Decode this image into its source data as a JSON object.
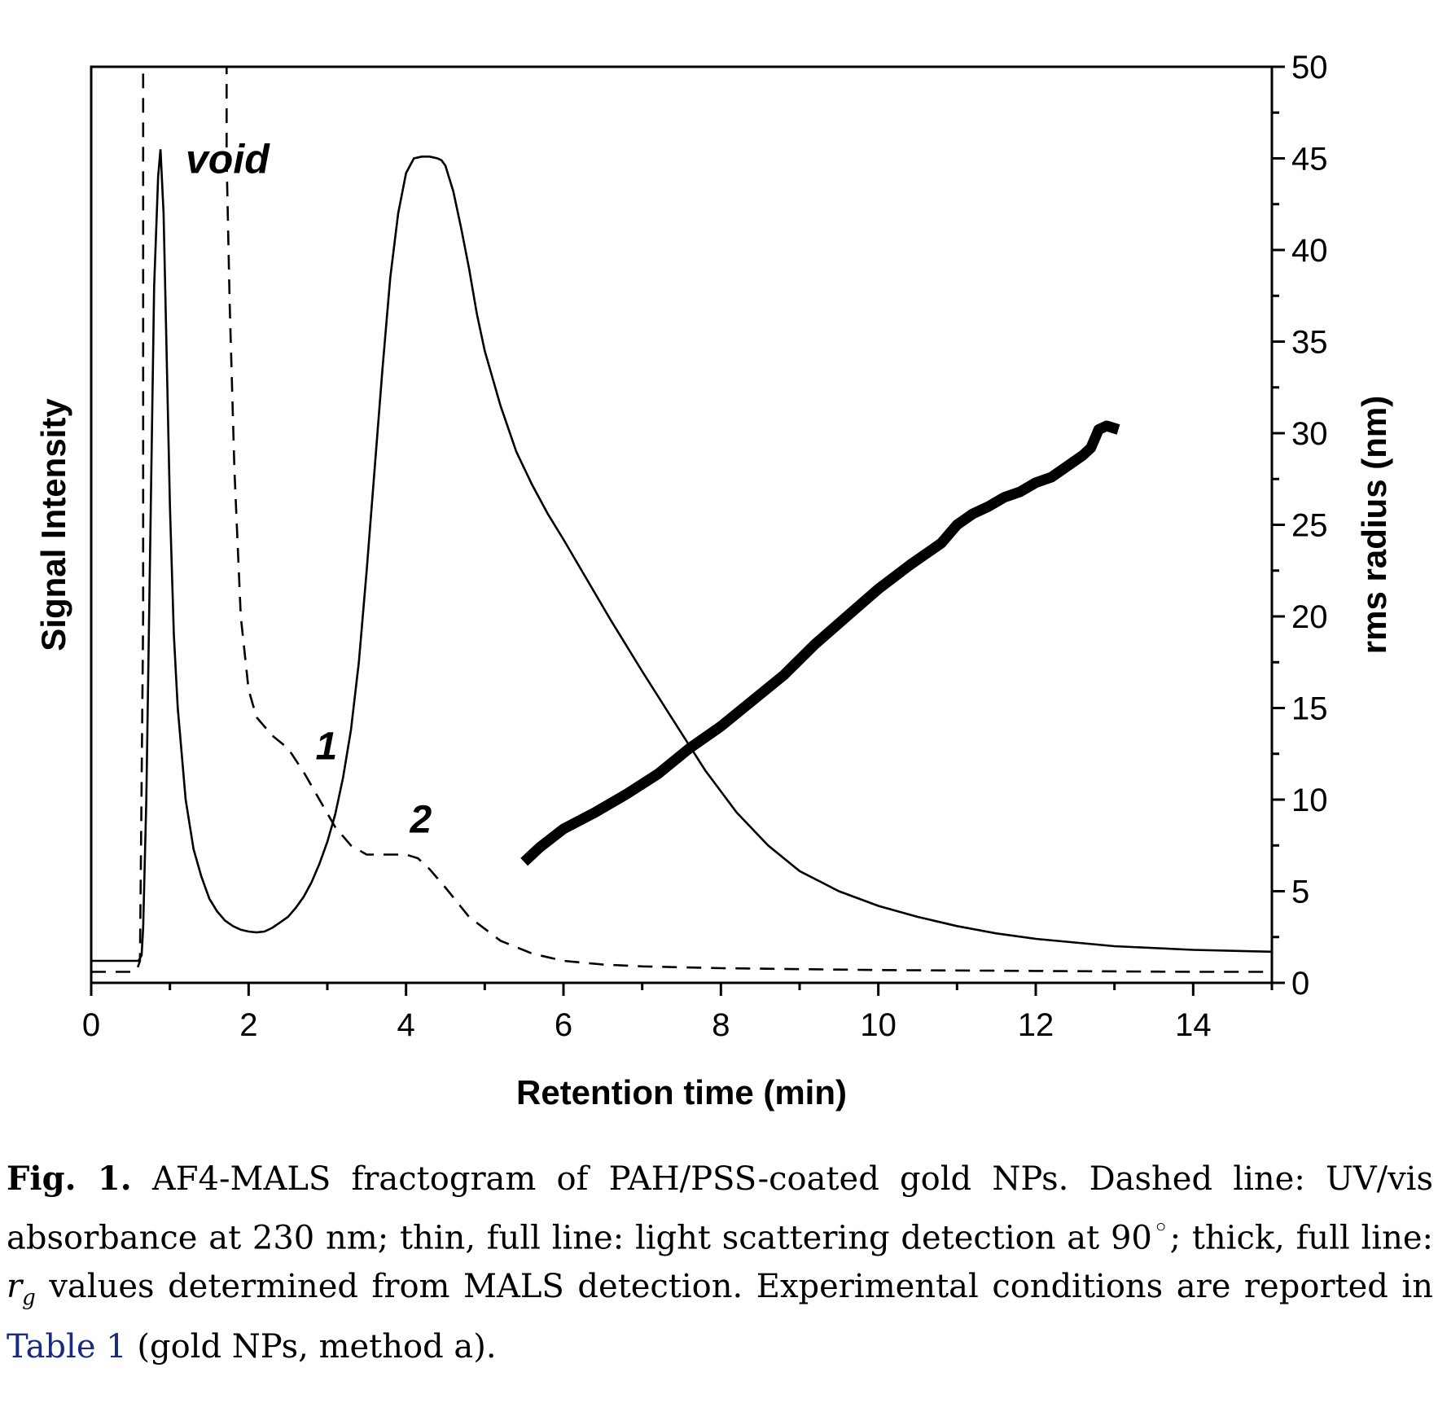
{
  "chart_data": {
    "type": "line",
    "xlabel": "Retention time (min)",
    "ylabel_left": "Signal Intensity",
    "ylabel_right": "rms radius (nm)",
    "xlim": [
      0,
      15
    ],
    "ylim_right": [
      0,
      50
    ],
    "x_ticks": [
      "0",
      "2",
      "4",
      "6",
      "8",
      "10",
      "12",
      "14"
    ],
    "y_right_ticks": [
      "0",
      "5",
      "10",
      "15",
      "20",
      "25",
      "30",
      "35",
      "40",
      "45",
      "50"
    ],
    "annotations": [
      {
        "text": "void",
        "x": 1.2,
        "y": 45
      },
      {
        "text": "1",
        "x": 2.85,
        "y": 13
      },
      {
        "text": "2",
        "x": 4.05,
        "y": 9
      }
    ],
    "series": [
      {
        "style": "dashed",
        "x": [
          0,
          0.5,
          0.58,
          0.62,
          0.66,
          0.66,
          1.72,
          1.72,
          1.76,
          1.82,
          1.9,
          2.0,
          2.1,
          2.3,
          2.5,
          2.7,
          2.9,
          3.1,
          3.3,
          3.5,
          3.8,
          4.0,
          4.15,
          4.3,
          4.5,
          4.8,
          5.2,
          5.6,
          6.0,
          6.5,
          7.0,
          8.0,
          10.0,
          12.0,
          14.0,
          15.0
        ],
        "y": [
          0.6,
          0.6,
          0.7,
          1.2,
          20,
          50,
          50,
          45,
          37,
          28,
          20,
          16,
          14.5,
          13.5,
          12.8,
          11.5,
          10.0,
          8.5,
          7.5,
          7.0,
          7.0,
          7.0,
          6.8,
          6.2,
          5.2,
          3.6,
          2.3,
          1.6,
          1.2,
          1.0,
          0.9,
          0.8,
          0.7,
          0.65,
          0.6,
          0.6
        ]
      },
      {
        "style": "solid-thin",
        "x": [
          0,
          0.6,
          0.64,
          0.66,
          0.7,
          0.75,
          0.8,
          0.85,
          0.88,
          0.92,
          0.96,
          1.0,
          1.05,
          1.1,
          1.2,
          1.3,
          1.4,
          1.5,
          1.6,
          1.7,
          1.8,
          1.9,
          2.0,
          2.1,
          2.2,
          2.3,
          2.4,
          2.5,
          2.6,
          2.7,
          2.8,
          2.9,
          3.0,
          3.1,
          3.2,
          3.3,
          3.4,
          3.5,
          3.6,
          3.7,
          3.8,
          3.9,
          4.0,
          4.1,
          4.2,
          4.3,
          4.4,
          4.45,
          4.5,
          4.6,
          4.7,
          4.8,
          4.9,
          5.0,
          5.2,
          5.4,
          5.6,
          5.8,
          6.0,
          6.3,
          6.6,
          7.0,
          7.4,
          7.8,
          8.2,
          8.6,
          9.0,
          9.5,
          10.0,
          10.5,
          11.0,
          11.5,
          12.0,
          12.5,
          13.0,
          14.0,
          15.0
        ],
        "y": [
          1.2,
          1.2,
          1.5,
          3,
          10,
          24,
          38,
          44,
          45.5,
          42,
          34,
          26,
          19,
          15,
          10,
          7.3,
          5.8,
          4.6,
          3.9,
          3.4,
          3.1,
          2.9,
          2.8,
          2.75,
          2.8,
          3.0,
          3.3,
          3.6,
          4.1,
          4.7,
          5.5,
          6.5,
          7.7,
          9.2,
          11.2,
          13.8,
          17.5,
          22.5,
          28,
          33.5,
          38.5,
          42,
          44.2,
          45,
          45.1,
          45.1,
          45.0,
          44.9,
          44.6,
          43.2,
          41.2,
          39,
          36.5,
          34.5,
          31.5,
          29,
          27.2,
          25.6,
          24.2,
          22,
          19.8,
          17,
          14.3,
          11.6,
          9.3,
          7.5,
          6.1,
          5.0,
          4.2,
          3.6,
          3.1,
          2.7,
          2.4,
          2.2,
          2.0,
          1.8,
          1.7
        ]
      },
      {
        "style": "solid-thick",
        "axis": "right",
        "x": [
          5.5,
          5.7,
          6.0,
          6.4,
          6.8,
          7.2,
          7.6,
          8.0,
          8.4,
          8.8,
          9.2,
          9.6,
          10.0,
          10.4,
          10.8,
          11.0,
          11.2,
          11.4,
          11.6,
          11.8,
          12.0,
          12.2,
          12.4,
          12.6,
          12.7,
          12.8,
          12.9,
          13.05
        ],
        "y": [
          6.6,
          7.4,
          8.4,
          9.3,
          10.3,
          11.4,
          12.8,
          14.0,
          15.4,
          16.8,
          18.5,
          20.0,
          21.5,
          22.8,
          24.0,
          25.0,
          25.6,
          26.0,
          26.5,
          26.8,
          27.3,
          27.6,
          28.2,
          28.8,
          29.2,
          30.2,
          30.4,
          30.2
        ]
      }
    ]
  },
  "caption": {
    "fig_label": "Fig. 1.",
    "text_1": " AF4-MALS fractogram of PAH/PSS-coated gold NPs. Dashed line: UV/vis absorbance at 230 nm; thin, full line: light scattering detection at 90",
    "degree": "◦",
    "text_2": "; thick, full line: ",
    "r_symbol": "r",
    "r_sub": "g",
    "text_3": " values determined from MALS detection. Experimental conditions are reported in ",
    "link_text": "Table 1",
    "text_4": " (gold NPs, method a)."
  }
}
